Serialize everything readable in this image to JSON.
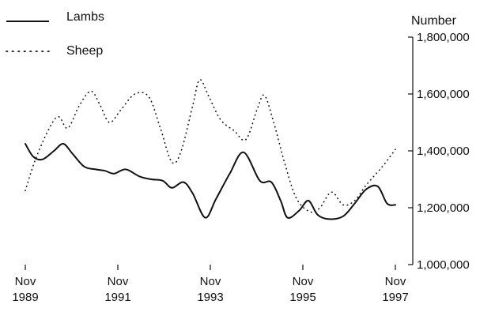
{
  "chart_data": {
    "type": "line",
    "ylabel": "Number",
    "ylim": [
      1000000,
      1800000
    ],
    "y_ticks": [
      {
        "value": 1000000,
        "label": "1,000,000"
      },
      {
        "value": 1200000,
        "label": "1,200,000"
      },
      {
        "value": 1400000,
        "label": "1,400,000"
      },
      {
        "value": 1600000,
        "label": "1,600,000"
      },
      {
        "value": 1800000,
        "label": "1,800,000"
      }
    ],
    "xlim": [
      1989.83,
      1997.83
    ],
    "x_ticks": [
      {
        "value": 1989.83,
        "month": "Nov",
        "year": "1989"
      },
      {
        "value": 1991.83,
        "month": "Nov",
        "year": "1991"
      },
      {
        "value": 1993.83,
        "month": "Nov",
        "year": "1993"
      },
      {
        "value": 1995.83,
        "month": "Nov",
        "year": "1995"
      },
      {
        "value": 1997.83,
        "month": "Nov",
        "year": "1997"
      }
    ],
    "y_axis_position": "right",
    "grid": false,
    "legend_position": "top-left",
    "series": [
      {
        "name": "Lambs",
        "style": "solid",
        "color": "#111111",
        "points": [
          [
            1989.83,
            1425000
          ],
          [
            1990.0,
            1380000
          ],
          [
            1990.2,
            1370000
          ],
          [
            1990.45,
            1400000
          ],
          [
            1990.65,
            1425000
          ],
          [
            1990.85,
            1390000
          ],
          [
            1991.1,
            1345000
          ],
          [
            1991.35,
            1335000
          ],
          [
            1991.55,
            1330000
          ],
          [
            1991.75,
            1320000
          ],
          [
            1992.0,
            1335000
          ],
          [
            1992.3,
            1310000
          ],
          [
            1992.55,
            1300000
          ],
          [
            1992.8,
            1295000
          ],
          [
            1993.0,
            1270000
          ],
          [
            1993.25,
            1290000
          ],
          [
            1993.45,
            1250000
          ],
          [
            1993.72,
            1165000
          ],
          [
            1993.95,
            1230000
          ],
          [
            1994.25,
            1320000
          ],
          [
            1994.55,
            1395000
          ],
          [
            1994.9,
            1295000
          ],
          [
            1995.15,
            1290000
          ],
          [
            1995.35,
            1225000
          ],
          [
            1995.5,
            1165000
          ],
          [
            1995.75,
            1190000
          ],
          [
            1995.95,
            1225000
          ],
          [
            1996.15,
            1175000
          ],
          [
            1996.4,
            1160000
          ],
          [
            1996.7,
            1170000
          ],
          [
            1996.95,
            1215000
          ],
          [
            1997.2,
            1265000
          ],
          [
            1997.45,
            1275000
          ],
          [
            1997.65,
            1215000
          ],
          [
            1997.83,
            1210000
          ]
        ]
      },
      {
        "name": "Sheep",
        "style": "dotted",
        "color": "#111111",
        "points": [
          [
            1989.83,
            1260000
          ],
          [
            1990.05,
            1370000
          ],
          [
            1990.35,
            1480000
          ],
          [
            1990.55,
            1520000
          ],
          [
            1990.75,
            1480000
          ],
          [
            1991.0,
            1560000
          ],
          [
            1991.25,
            1610000
          ],
          [
            1991.45,
            1560000
          ],
          [
            1991.65,
            1500000
          ],
          [
            1991.9,
            1545000
          ],
          [
            1992.2,
            1600000
          ],
          [
            1992.5,
            1590000
          ],
          [
            1992.75,
            1480000
          ],
          [
            1993.0,
            1360000
          ],
          [
            1993.2,
            1400000
          ],
          [
            1993.45,
            1560000
          ],
          [
            1993.6,
            1650000
          ],
          [
            1993.8,
            1590000
          ],
          [
            1994.05,
            1510000
          ],
          [
            1994.35,
            1470000
          ],
          [
            1994.6,
            1440000
          ],
          [
            1994.85,
            1550000
          ],
          [
            1995.0,
            1595000
          ],
          [
            1995.2,
            1500000
          ],
          [
            1995.45,
            1350000
          ],
          [
            1995.7,
            1230000
          ],
          [
            1996.0,
            1185000
          ],
          [
            1996.2,
            1200000
          ],
          [
            1996.45,
            1255000
          ],
          [
            1996.7,
            1210000
          ],
          [
            1996.95,
            1225000
          ],
          [
            1997.2,
            1280000
          ],
          [
            1997.55,
            1345000
          ],
          [
            1997.83,
            1405000
          ]
        ]
      }
    ]
  }
}
